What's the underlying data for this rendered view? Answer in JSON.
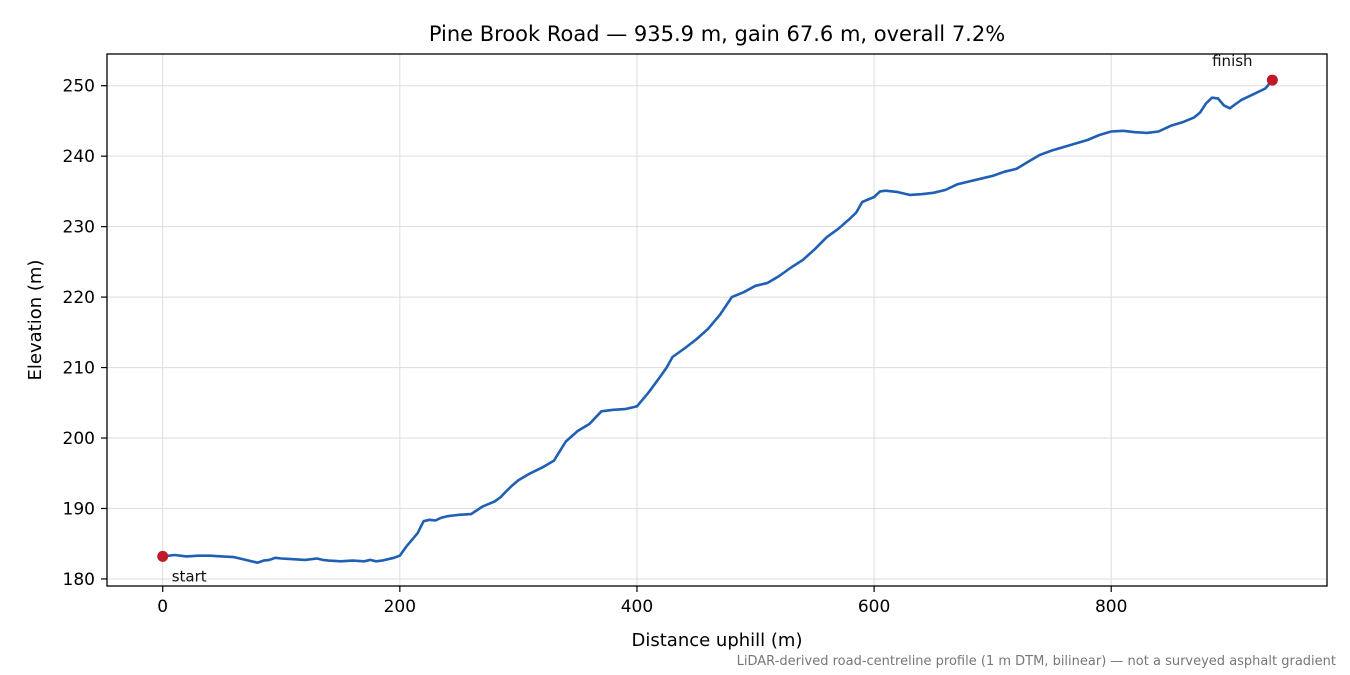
{
  "chart_data": {
    "type": "line",
    "title": "Pine Brook Road — 935.9 m, gain 67.6 m, overall 7.2%",
    "xlabel": "Distance uphill (m)",
    "ylabel": "Elevation (m)",
    "xlim": [
      -47,
      982
    ],
    "ylim": [
      179,
      254.5
    ],
    "xticks": [
      0,
      200,
      400,
      600,
      800
    ],
    "yticks": [
      180,
      190,
      200,
      210,
      220,
      230,
      240,
      250
    ],
    "grid": true,
    "line_color": "#1f5fb4",
    "marker_color": "#c0172a",
    "footnote": "LiDAR-derived road-centreline profile (1 m DTM, bilinear) — not a surveyed asphalt gradient",
    "markers": [
      {
        "label": "start",
        "x": 0,
        "y": 183.2
      },
      {
        "label": "finish",
        "x": 935.9,
        "y": 250.8
      }
    ],
    "series": [
      {
        "x": [
          0,
          10,
          20,
          30,
          40,
          50,
          60,
          70,
          75,
          80,
          85,
          90,
          95,
          100,
          110,
          120,
          130,
          135,
          140,
          150,
          160,
          170,
          175,
          180,
          185,
          190,
          195,
          200,
          205,
          210,
          215,
          220,
          225,
          230,
          235,
          240,
          245,
          250,
          260,
          270,
          280,
          285,
          290,
          295,
          300,
          310,
          320,
          330,
          340,
          350,
          360,
          370,
          380,
          390,
          400,
          410,
          420,
          425,
          430,
          440,
          450,
          460,
          470,
          480,
          490,
          500,
          510,
          520,
          530,
          540,
          550,
          560,
          570,
          580,
          585,
          590,
          600,
          605,
          610,
          620,
          630,
          640,
          650,
          660,
          670,
          680,
          690,
          700,
          710,
          720,
          730,
          740,
          750,
          760,
          770,
          780,
          790,
          800,
          810,
          820,
          830,
          840,
          850,
          860,
          870,
          875,
          880,
          885,
          890,
          895,
          900,
          905,
          910,
          920,
          930,
          935.9
        ],
        "y": [
          183.2,
          183.4,
          183.2,
          183.3,
          183.3,
          183.2,
          183.1,
          182.7,
          182.5,
          182.3,
          182.6,
          182.7,
          183.0,
          182.9,
          182.8,
          182.7,
          182.9,
          182.7,
          182.6,
          182.5,
          182.6,
          182.5,
          182.7,
          182.5,
          182.6,
          182.8,
          183.0,
          183.3,
          184.5,
          185.5,
          186.5,
          188.2,
          188.4,
          188.3,
          188.7,
          188.9,
          189.0,
          189.1,
          189.2,
          190.3,
          191.0,
          191.6,
          192.5,
          193.3,
          194.0,
          195.0,
          195.8,
          196.8,
          199.5,
          201.0,
          202.0,
          203.8,
          204.0,
          204.1,
          204.5,
          206.5,
          208.8,
          210.0,
          211.5,
          212.7,
          214.0,
          215.5,
          217.5,
          220.0,
          220.7,
          221.6,
          222.0,
          223.0,
          224.2,
          225.3,
          226.8,
          228.5,
          229.7,
          231.2,
          232.0,
          233.5,
          234.2,
          235.0,
          235.1,
          234.9,
          234.5,
          234.6,
          234.8,
          235.2,
          236.0,
          236.4,
          236.8,
          237.2,
          237.8,
          238.2,
          239.2,
          240.2,
          240.8,
          241.3,
          241.8,
          242.3,
          243.0,
          243.5,
          243.6,
          243.4,
          243.3,
          243.5,
          244.3,
          244.8,
          245.5,
          246.2,
          247.5,
          248.3,
          248.2,
          247.2,
          246.8,
          247.4,
          248.0,
          248.8,
          249.6,
          250.8
        ]
      }
    ]
  }
}
